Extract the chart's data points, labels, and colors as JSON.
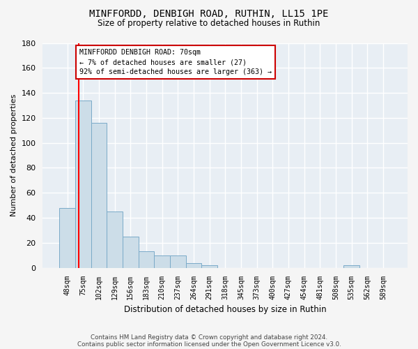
{
  "title1": "MINFFORDD, DENBIGH ROAD, RUTHIN, LL15 1PE",
  "title2": "Size of property relative to detached houses in Ruthin",
  "xlabel": "Distribution of detached houses by size in Ruthin",
  "ylabel": "Number of detached properties",
  "categories": [
    "48sqm",
    "75sqm",
    "102sqm",
    "129sqm",
    "156sqm",
    "183sqm",
    "210sqm",
    "237sqm",
    "264sqm",
    "291sqm",
    "318sqm",
    "345sqm",
    "373sqm",
    "400sqm",
    "427sqm",
    "454sqm",
    "481sqm",
    "508sqm",
    "535sqm",
    "562sqm",
    "589sqm"
  ],
  "values": [
    48,
    134,
    116,
    45,
    25,
    13,
    10,
    10,
    4,
    2,
    0,
    0,
    0,
    0,
    0,
    0,
    0,
    0,
    2,
    0,
    0
  ],
  "bar_color": "#ccdde8",
  "bar_edge_color": "#7aaac8",
  "background_color": "#e8eef4",
  "grid_color": "#ffffff",
  "annotation_line1": "MINFFORDD DENBIGH ROAD: 70sqm",
  "annotation_line2": "← 7% of detached houses are smaller (27)",
  "annotation_line3": "92% of semi-detached houses are larger (363) →",
  "annotation_box_color": "#ffffff",
  "annotation_box_edge": "#cc0000",
  "vline_x_index": 0.72,
  "ylim": [
    0,
    180
  ],
  "yticks": [
    0,
    20,
    40,
    60,
    80,
    100,
    120,
    140,
    160,
    180
  ],
  "footer1": "Contains HM Land Registry data © Crown copyright and database right 2024.",
  "footer2": "Contains public sector information licensed under the Open Government Licence v3.0.",
  "fig_bg": "#f5f5f5"
}
